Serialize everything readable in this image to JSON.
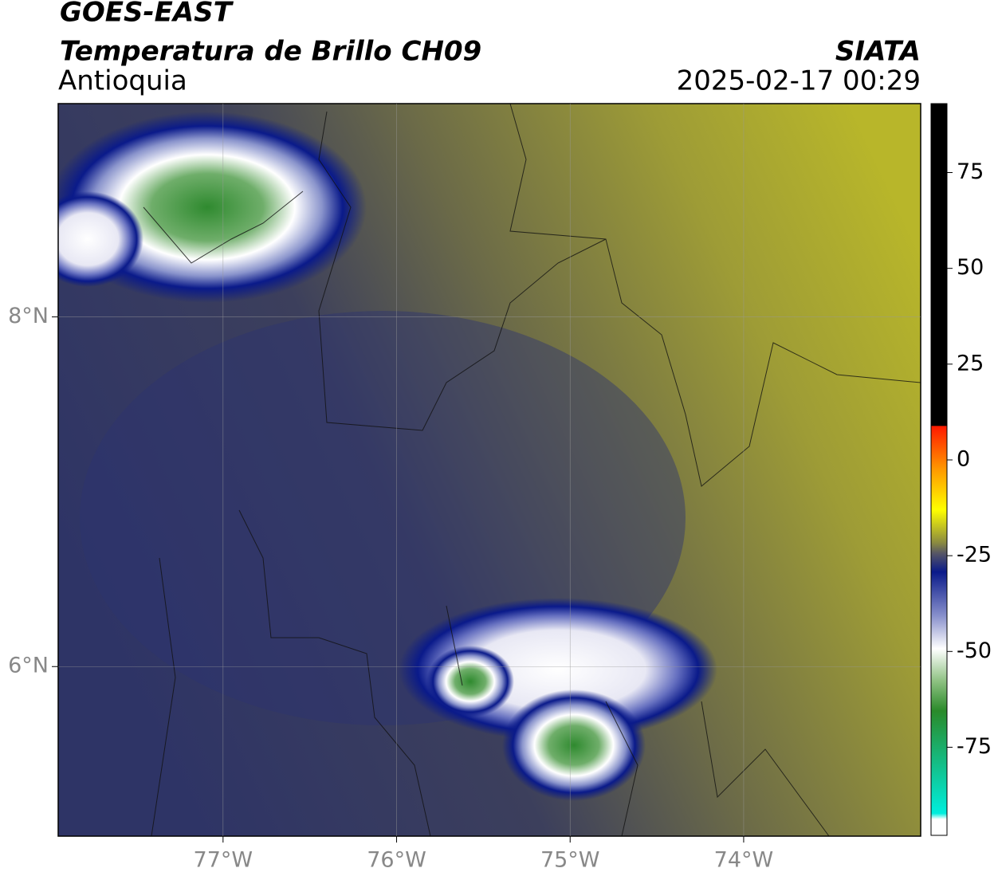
{
  "header": {
    "title": "GOES-EAST",
    "subtitle": "Temperatura de Brillo CH09",
    "region": "Antioquia",
    "source": "SIATA",
    "datetime": "2025-02-17 00:29"
  },
  "map": {
    "xlim": [
      -77.95,
      -72.98
    ],
    "ylim": [
      5.03,
      9.22
    ],
    "xticks": [
      {
        "value": -77,
        "label": "77°W"
      },
      {
        "value": -76,
        "label": "76°W"
      },
      {
        "value": -75,
        "label": "75°W"
      },
      {
        "value": -74,
        "label": "74°W"
      }
    ],
    "yticks": [
      {
        "value": 8,
        "label": "8°N"
      },
      {
        "value": 6,
        "label": "6°N"
      }
    ]
  },
  "colorbar": {
    "lim": [
      -98,
      93
    ],
    "ticks": [
      75,
      50,
      25,
      0,
      -25,
      -50,
      -75
    ]
  }
}
